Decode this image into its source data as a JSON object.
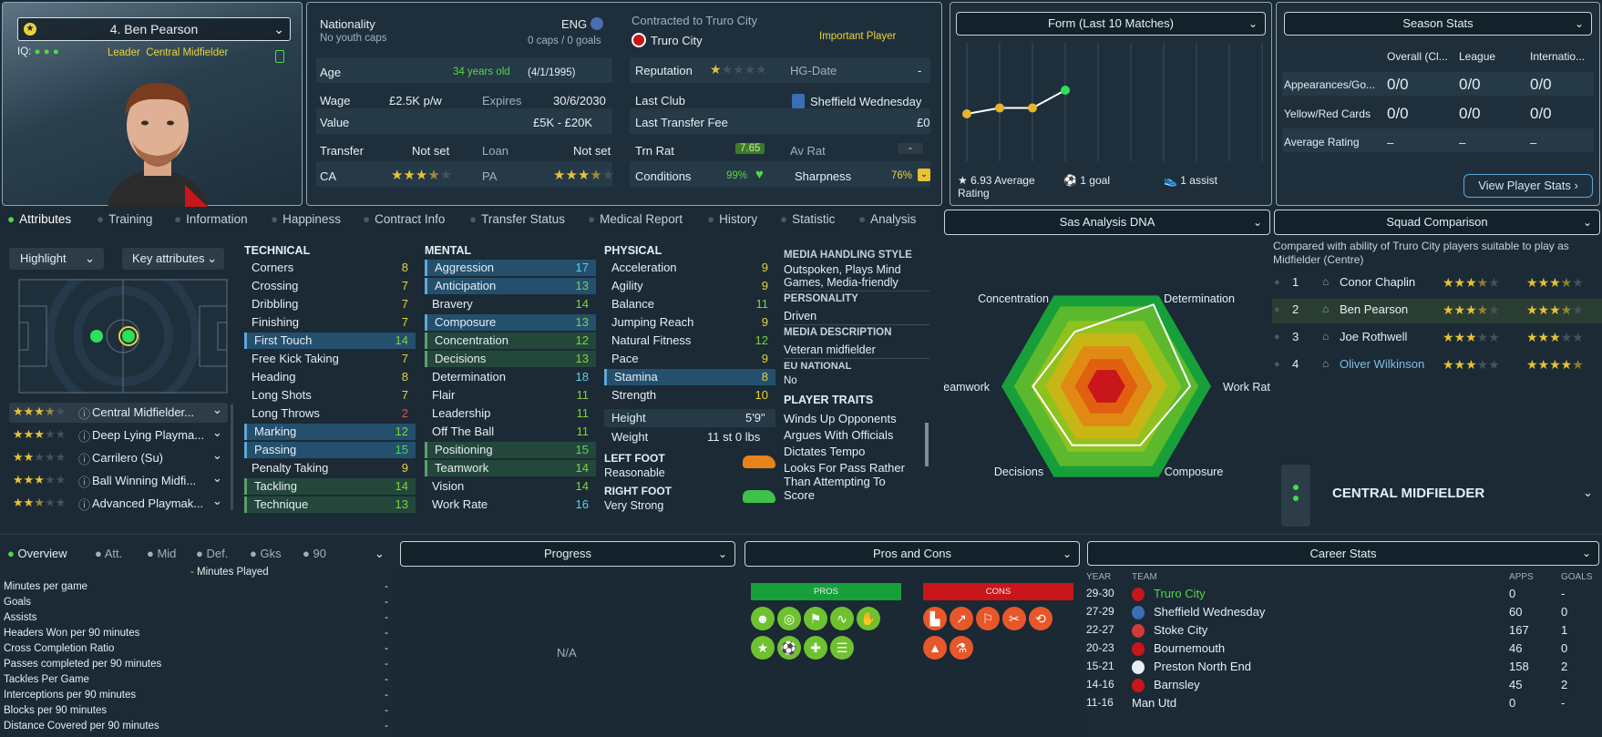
{
  "profile": {
    "name": "4. Ben Pearson",
    "iq_label": "IQ:",
    "role": "Leader",
    "position": "Central Midfielder"
  },
  "info": {
    "nationality_label": "Nationality",
    "nationality": "ENG",
    "youth_caps": "No youth caps",
    "caps": "0 caps / 0 goals",
    "age_label": "Age",
    "age": "34 years old",
    "dob": "(4/1/1995)",
    "wage_label": "Wage",
    "wage": "£2.5K p/w",
    "expires_label": "Expires",
    "expires": "30/6/2030",
    "value_label": "Value",
    "value": "£5K - £20K",
    "transfer_label": "Transfer",
    "transfer": "Not set",
    "loan_label": "Loan",
    "loan": "Not set",
    "ca_label": "CA",
    "pa_label": "PA",
    "contract_label": "Contracted to Truro City",
    "club": "Truro City",
    "status": "Important Player",
    "reputation_label": "Reputation",
    "hgdate_label": "HG-Date",
    "hgdate": "-",
    "lastclub_label": "Last Club",
    "lastclub": "Sheffield Wednesday",
    "fee_label": "Last Transfer Fee",
    "fee": "£0",
    "trnrat_label": "Trn Rat",
    "trnrat": "7.65",
    "avrat_label": "Av Rat",
    "avrat": "-",
    "cond_label": "Conditions",
    "cond": "99%",
    "sharp_label": "Sharpness",
    "sharp": "76%"
  },
  "form": {
    "title": "Form (Last 10 Matches)",
    "avg": "6.93 Average Rating",
    "goals": "1 goal",
    "assists": "1 assist",
    "ratings": [
      6.8,
      6.9,
      6.9,
      7.2
    ]
  },
  "season": {
    "title": "Season Stats",
    "cols": [
      "Overall (Cl...",
      "League",
      "Internatio..."
    ],
    "rows": [
      {
        "label": "Appearances/Go...",
        "v": [
          "0/0",
          "0/0",
          "0/0"
        ]
      },
      {
        "label": "Yellow/Red Cards",
        "v": [
          "0/0",
          "0/0",
          "0/0"
        ]
      },
      {
        "label": "Average Rating",
        "v": [
          "–",
          "–",
          "–"
        ]
      }
    ],
    "button": "View Player Stats"
  },
  "tabs": [
    "Attributes",
    "Training",
    "Information",
    "Happiness",
    "Contract Info",
    "Transfer Status",
    "Medical Report",
    "History",
    "Statistic",
    "Analysis"
  ],
  "left": {
    "highlight": "Highlight",
    "key": "Key attributes",
    "roles": [
      "Central Midfielder...",
      "Deep Lying Playma...",
      "Carrilero (Su)",
      "Ball Winning Midfi...",
      "Advanced Playmak..."
    ]
  },
  "technical": {
    "title": "TECHNICAL",
    "items": [
      [
        "Corners",
        "8"
      ],
      [
        "Crossing",
        "7"
      ],
      [
        "Dribbling",
        "7"
      ],
      [
        "Finishing",
        "7"
      ],
      [
        "First Touch",
        "14"
      ],
      [
        "Free Kick Taking",
        "7"
      ],
      [
        "Heading",
        "8"
      ],
      [
        "Long Shots",
        "7"
      ],
      [
        "Long Throws",
        "2"
      ],
      [
        "Marking",
        "12"
      ],
      [
        "Passing",
        "15"
      ],
      [
        "Penalty Taking",
        "9"
      ],
      [
        "Tackling",
        "14"
      ],
      [
        "Technique",
        "13"
      ]
    ]
  },
  "mental": {
    "title": "MENTAL",
    "items": [
      [
        "Aggression",
        "17"
      ],
      [
        "Anticipation",
        "13"
      ],
      [
        "Bravery",
        "14"
      ],
      [
        "Composure",
        "13"
      ],
      [
        "Concentration",
        "12"
      ],
      [
        "Decisions",
        "13"
      ],
      [
        "Determination",
        "18"
      ],
      [
        "Flair",
        "11"
      ],
      [
        "Leadership",
        "11"
      ],
      [
        "Off The Ball",
        "11"
      ],
      [
        "Positioning",
        "15"
      ],
      [
        "Teamwork",
        "14"
      ],
      [
        "Vision",
        "14"
      ],
      [
        "Work Rate",
        "16"
      ]
    ]
  },
  "physical": {
    "title": "PHYSICAL",
    "items": [
      [
        "Acceleration",
        "9"
      ],
      [
        "Agility",
        "9"
      ],
      [
        "Balance",
        "11"
      ],
      [
        "Jumping Reach",
        "9"
      ],
      [
        "Natural Fitness",
        "12"
      ],
      [
        "Pace",
        "9"
      ],
      [
        "Stamina",
        "8"
      ],
      [
        "Strength",
        "10"
      ]
    ],
    "height_label": "Height",
    "height": "5'9\"",
    "weight_label": "Weight",
    "weight": "11 st 0 lbs",
    "lf_label": "LEFT FOOT",
    "lf": "Reasonable",
    "rf_label": "RIGHT FOOT",
    "rf": "Very Strong"
  },
  "media": {
    "style_label": "MEDIA HANDLING STYLE",
    "style": "Outspoken, Plays Mind Games, Media-friendly",
    "pers_label": "PERSONALITY",
    "pers": "Driven",
    "desc_label": "MEDIA DESCRIPTION",
    "desc": "Veteran midfielder",
    "eu_label": "EU NATIONAL",
    "eu": "No",
    "traits_label": "PLAYER TRAITS",
    "traits": [
      "Winds Up Opponents",
      "Argues With Officials",
      "Dictates Tempo",
      "Looks For Pass Rather Than Attempting To Score"
    ]
  },
  "dna": {
    "title": "Sas Analysis DNA",
    "axes": [
      "Concentration",
      "Determination",
      "Work Rate",
      "Composure",
      "Decisions",
      "Teamwork"
    ],
    "values": [
      12,
      18,
      16,
      13,
      13,
      14
    ]
  },
  "squad": {
    "title": "Squad Comparison",
    "desc": "Compared with ability of Truro City players suitable to play as Midfielder (Centre)",
    "players": [
      {
        "n": "1",
        "name": "Conor Chaplin"
      },
      {
        "n": "2",
        "name": "Ben Pearson"
      },
      {
        "n": "3",
        "name": "Joe Rothwell"
      },
      {
        "n": "4",
        "name": "Oliver Wilkinson"
      }
    ],
    "position": "CENTRAL MIDFIELDER"
  },
  "overview": {
    "tabs": [
      "Overview",
      "Att.",
      "Mid",
      "Def.",
      "Gks",
      "90"
    ],
    "legend": "Minutes Played",
    "rows": [
      "Minutes per game",
      "Goals",
      "Assists",
      "Headers Won per 90 minutes",
      "Cross Completion Ratio",
      "Passes completed per 90 minutes",
      "Tackles Per Game",
      "Interceptions per 90 minutes",
      "Blocks per 90 minutes",
      "Distance Covered per 90 minutes"
    ],
    "value": "-"
  },
  "progress": {
    "title": "Progress",
    "na": "N/A"
  },
  "proscons": {
    "title": "Pros and Cons",
    "pros": "PROS",
    "cons": "CONS"
  },
  "career": {
    "title": "Career Stats",
    "h_year": "YEAR",
    "h_team": "TEAM",
    "h_apps": "APPS",
    "h_goals": "GOALS",
    "rows": [
      [
        "29-30",
        "Truro City",
        "0",
        "-"
      ],
      [
        "27-29",
        "Sheffield Wednesday",
        "60",
        "0"
      ],
      [
        "22-27",
        "Stoke City",
        "167",
        "1"
      ],
      [
        "20-23",
        "Bournemouth",
        "46",
        "0"
      ],
      [
        "15-21",
        "Preston North End",
        "158",
        "2"
      ],
      [
        "14-16",
        "Barnsley",
        "45",
        "2"
      ],
      [
        "11-16",
        "Man Utd",
        "0",
        "-"
      ]
    ]
  },
  "colors": {
    "accent": "#5fa7d6",
    "green": "#54d64a",
    "yellow": "#e8d43a",
    "red": "#c8161a"
  }
}
